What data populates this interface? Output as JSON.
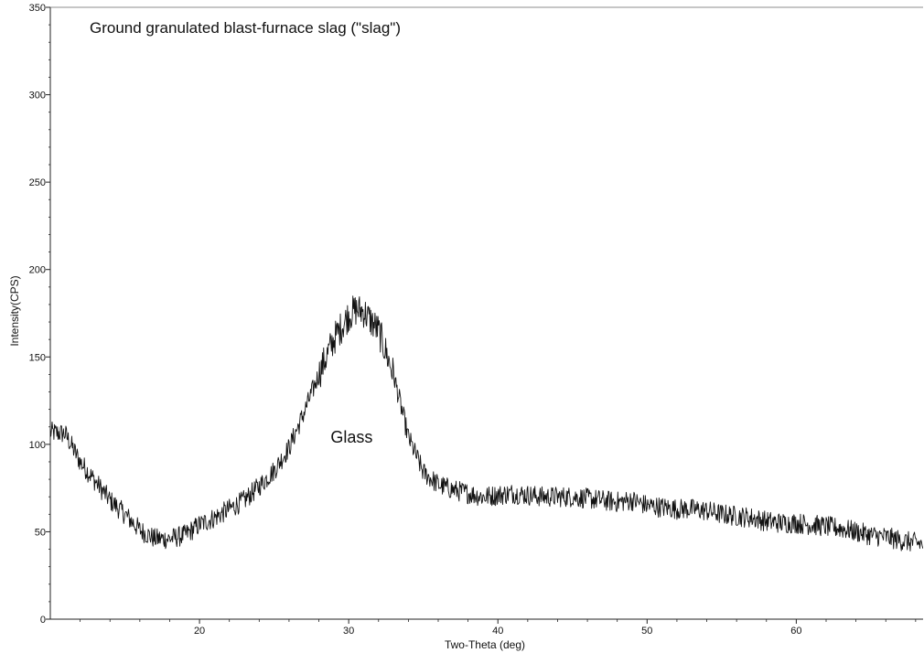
{
  "chart_data": {
    "type": "line",
    "title": "Ground granulated blast-furnace slag (\"slag\")",
    "xlabel": "Two-Theta (deg)",
    "ylabel": "Intensity(CPS)",
    "xlim": [
      10,
      68.5
    ],
    "ylim": [
      0,
      350
    ],
    "xticks": [
      20,
      30,
      40,
      50,
      60
    ],
    "yticks": [
      0,
      50,
      100,
      150,
      200,
      250,
      300,
      350
    ],
    "grid": false,
    "legend": "none",
    "line_color": "#111111",
    "annotations": [
      {
        "text": "Glass",
        "x": 30.2,
        "y": 101
      }
    ],
    "series": [
      {
        "points": [
          [
            10,
            107
          ],
          [
            11,
            106
          ],
          [
            12,
            90
          ],
          [
            13,
            79
          ],
          [
            14,
            68
          ],
          [
            15,
            60
          ],
          [
            16,
            51
          ],
          [
            17,
            46
          ],
          [
            18,
            46
          ],
          [
            19,
            48
          ],
          [
            20,
            54
          ],
          [
            21,
            58
          ],
          [
            22,
            63
          ],
          [
            23,
            68
          ],
          [
            24,
            76
          ],
          [
            25,
            85
          ],
          [
            26,
            98
          ],
          [
            27,
            118
          ],
          [
            28,
            140
          ],
          [
            29,
            160
          ],
          [
            30,
            174
          ],
          [
            30.5,
            177
          ],
          [
            31,
            176
          ],
          [
            32,
            165
          ],
          [
            33,
            140
          ],
          [
            34,
            104
          ],
          [
            35,
            84
          ],
          [
            36,
            77
          ],
          [
            37,
            74
          ],
          [
            38,
            72
          ],
          [
            39,
            70
          ],
          [
            40,
            71
          ],
          [
            41,
            72
          ],
          [
            42,
            71
          ],
          [
            43,
            70
          ],
          [
            44,
            70
          ],
          [
            45,
            70
          ],
          [
            46,
            69
          ],
          [
            47,
            68
          ],
          [
            48,
            67
          ],
          [
            49,
            68
          ],
          [
            50,
            65
          ],
          [
            51,
            64
          ],
          [
            52,
            63
          ],
          [
            53,
            63
          ],
          [
            54,
            62
          ],
          [
            55,
            60
          ],
          [
            56,
            59
          ],
          [
            57,
            58
          ],
          [
            58,
            56
          ],
          [
            59,
            55
          ],
          [
            60,
            55
          ],
          [
            61,
            54
          ],
          [
            62,
            53
          ],
          [
            63,
            52
          ],
          [
            64,
            50
          ],
          [
            65,
            48
          ],
          [
            66,
            47
          ],
          [
            67,
            45
          ],
          [
            68.5,
            43
          ]
        ],
        "noise_amplitude": 6
      }
    ]
  }
}
